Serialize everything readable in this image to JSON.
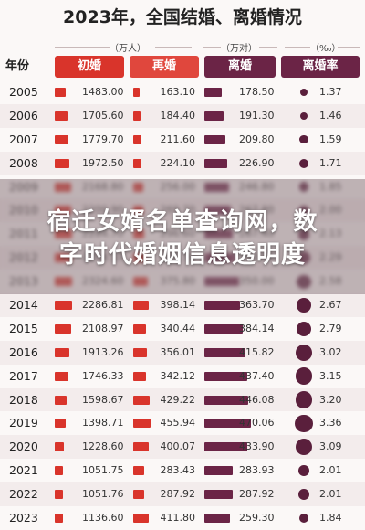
{
  "chart_data": {
    "type": "table",
    "title": "2023年，全国结婚、离婚情况",
    "headers": {
      "year": "年份",
      "marriage": "初婚",
      "remarriage": "再婚",
      "divorce": "离婚",
      "divorce_rate": "离婚率"
    },
    "units": {
      "marriage": "（万人）",
      "divorce": "（万对）",
      "rate": "（‰）"
    },
    "colors": {
      "marriage": "#d9342b",
      "divorce": "#6b2446",
      "dot": "#5a1f3c"
    },
    "years": [
      "2005",
      "2006",
      "2007",
      "2008",
      "2009",
      "2010",
      "2011",
      "2012",
      "2013",
      "2014",
      "2015",
      "2016",
      "2017",
      "2018",
      "2019",
      "2020",
      "2021",
      "2022",
      "2023"
    ],
    "first_marriage": [
      "1483.00",
      "1705.60",
      "1779.70",
      "1972.50",
      "2168.80",
      "2200.90",
      "2284.70",
      "2318.10",
      "2324.60",
      "2286.81",
      "2108.97",
      "1913.26",
      "1746.33",
      "1598.67",
      "1398.71",
      "1228.60",
      "1051.75",
      "1051.76",
      "1136.60"
    ],
    "remarriage": [
      "163.10",
      "184.40",
      "211.60",
      "224.10",
      "256.00",
      "269.70",
      "296.60",
      "325.70",
      "375.80",
      "398.14",
      "340.44",
      "356.01",
      "342.12",
      "429.22",
      "455.94",
      "400.07",
      "283.43",
      "287.92",
      "411.80"
    ],
    "divorce": [
      "178.50",
      "191.30",
      "209.80",
      "226.90",
      "246.80",
      "267.80",
      "287.40",
      "310.40",
      "350.00",
      "363.70",
      "384.14",
      "415.82",
      "437.40",
      "446.08",
      "470.06",
      "433.90",
      "283.93",
      "287.92",
      "259.30"
    ],
    "divorce_rate": [
      "1.37",
      "1.46",
      "1.59",
      "1.71",
      "1.85",
      "2.00",
      "2.13",
      "2.29",
      "2.58",
      "2.67",
      "2.79",
      "3.02",
      "3.15",
      "3.20",
      "3.36",
      "3.09",
      "2.01",
      "2.01",
      "1.84"
    ]
  },
  "overlay": {
    "line1": "宿迁女婿名单查询网，数",
    "line2": "字时代婚姻信息透明度"
  }
}
